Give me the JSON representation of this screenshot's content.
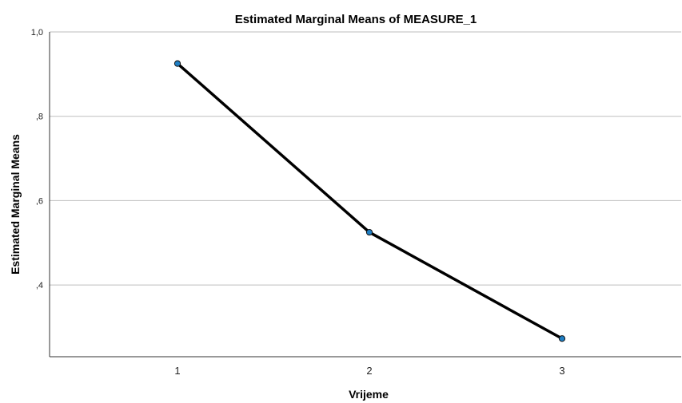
{
  "chart_data": {
    "type": "line",
    "title": "Estimated Marginal Means of MEASURE_1",
    "xlabel": "Vrijeme",
    "ylabel": "Estimated Marginal Means",
    "categories": [
      "1",
      "2",
      "3"
    ],
    "series": [
      {
        "values": [
          0.925,
          0.525,
          0.273
        ]
      }
    ],
    "ylim": [
      0.23,
      1.0
    ],
    "yticks": [
      {
        "value": 1.0,
        "label": "1,0"
      },
      {
        "value": 0.8,
        "label": ",8"
      },
      {
        "value": 0.6,
        "label": ",6"
      },
      {
        "value": 0.4,
        "label": ",4"
      }
    ],
    "grid": true,
    "line_color": "#000000",
    "marker_color": "#1f7fc4"
  }
}
